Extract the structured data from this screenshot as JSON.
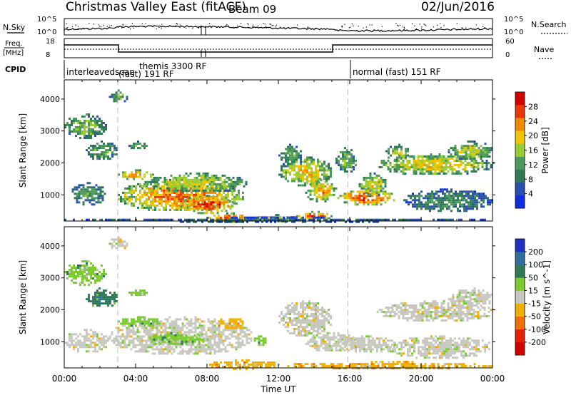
{
  "header": {
    "title": "Christmas Valley East (fitACF)",
    "beam": "Beam 09",
    "date": "02/Jun/2016"
  },
  "top_panels": {
    "nsky": {
      "left_label": "N.Sky",
      "right_label": "N.Search",
      "left_ticks": [
        "10^5",
        "10^0"
      ],
      "right_ticks": [
        "10^5",
        "10^0"
      ]
    },
    "freq": {
      "left_label_1": "Freq.",
      "left_label_2": "[MHz]",
      "left_ticks": [
        "18",
        "8"
      ],
      "right_label": "Nave",
      "right_ticks": [
        "60",
        "0"
      ]
    },
    "cpid": {
      "label": "CPID",
      "segments": [
        {
          "text": "interleavedscan",
          "start_hour": 0
        },
        {
          "text": "themis 3300 RF",
          "start_hour": 7.7
        },
        {
          "text": "(fast) 191 RF",
          "start_hour": 3.0
        },
        {
          "text": "normal (fast) 151 RF",
          "start_hour": 15.9
        }
      ]
    }
  },
  "chart_data": [
    {
      "type": "heatmap",
      "name": "power",
      "ylabel": "Slant Range [km]",
      "xlim_hours": [
        0,
        24
      ],
      "ylim": [
        180,
        4600
      ],
      "yticks": [
        1000,
        2000,
        3000,
        4000
      ],
      "colorbar": {
        "label": "Power [dB]",
        "ticks": [
          4,
          8,
          12,
          16,
          20,
          24,
          28
        ],
        "range": [
          0,
          32
        ],
        "colors": [
          "#1030e0",
          "#2a4fb0",
          "#2f7a55",
          "#4e9a5a",
          "#9acd32",
          "#f2c400",
          "#f08a00",
          "#e83a00",
          "#d40000"
        ]
      },
      "regions": [
        {
          "t0": 0.0,
          "t1": 2.3,
          "r0": 2800,
          "r1": 3550,
          "level": 0.45
        },
        {
          "t0": 0.3,
          "t1": 2.3,
          "r0": 700,
          "r1": 1400,
          "level": 0.35
        },
        {
          "t0": 1.2,
          "t1": 3.0,
          "r0": 2100,
          "r1": 2700,
          "level": 0.4
        },
        {
          "t0": 2.5,
          "t1": 3.5,
          "r0": 3900,
          "r1": 4300,
          "level": 0.4
        },
        {
          "t0": 3.6,
          "t1": 4.6,
          "r0": 2450,
          "r1": 2700,
          "level": 0.5
        },
        {
          "t0": 3.0,
          "t1": 5.0,
          "r0": 1500,
          "r1": 1800,
          "level": 0.75
        },
        {
          "t0": 3.0,
          "t1": 10.0,
          "r0": 500,
          "r1": 1500,
          "level": 0.8
        },
        {
          "t0": 4.5,
          "t1": 10.2,
          "r0": 1100,
          "r1": 1700,
          "level": 0.55
        },
        {
          "t0": 6.5,
          "t1": 9.5,
          "r0": 450,
          "r1": 1000,
          "level": 0.92
        },
        {
          "t0": 8.0,
          "t1": 10.5,
          "r0": 180,
          "r1": 450,
          "level": 0.85
        },
        {
          "t0": 10.5,
          "t1": 13.0,
          "r0": 180,
          "r1": 400,
          "level": 0.6
        },
        {
          "t0": 12.0,
          "t1": 13.3,
          "r0": 1900,
          "r1": 2600,
          "level": 0.4
        },
        {
          "t0": 12.0,
          "t1": 15.0,
          "r0": 1300,
          "r1": 2200,
          "level": 0.65
        },
        {
          "t0": 13.5,
          "t1": 15.2,
          "r0": 800,
          "r1": 1500,
          "level": 0.72
        },
        {
          "t0": 13.0,
          "t1": 15.0,
          "r0": 250,
          "r1": 500,
          "level": 0.85
        },
        {
          "t0": 15.3,
          "t1": 18.5,
          "r0": 700,
          "r1": 1200,
          "level": 0.88
        },
        {
          "t0": 15.2,
          "t1": 16.3,
          "r0": 1700,
          "r1": 2500,
          "level": 0.45
        },
        {
          "t0": 16.5,
          "t1": 18.0,
          "r0": 1000,
          "r1": 1700,
          "level": 0.6
        },
        {
          "t0": 17.5,
          "t1": 24.0,
          "r0": 1650,
          "r1": 2300,
          "level": 0.62
        },
        {
          "t0": 18.0,
          "t1": 19.3,
          "r0": 2100,
          "r1": 2600,
          "level": 0.55
        },
        {
          "t0": 19.0,
          "t1": 24.0,
          "r0": 500,
          "r1": 1200,
          "level": 0.3
        },
        {
          "t0": 21.5,
          "t1": 24.0,
          "r0": 2100,
          "r1": 2700,
          "level": 0.55
        },
        {
          "t0": 0.0,
          "t1": 24.0,
          "r0": 180,
          "r1": 320,
          "level": 0.2
        }
      ]
    },
    {
      "type": "heatmap",
      "name": "velocity",
      "ylabel": "Slant Range [km]",
      "xlabel": "Time UT",
      "xticks": [
        "00:00",
        "04:00",
        "08:00",
        "12:00",
        "16:00",
        "20:00",
        "00:00"
      ],
      "xlim_hours": [
        0,
        24
      ],
      "ylim": [
        180,
        4600
      ],
      "yticks": [
        1000,
        2000,
        3000,
        4000
      ],
      "colorbar": {
        "label": "Velocity [m s^-1]",
        "ticks": [
          "200",
          "100",
          "50",
          "15",
          "-15",
          "-50",
          "-100",
          "-200"
        ],
        "colors": [
          "#2030c0",
          "#2f6fa0",
          "#2f7a55",
          "#7acc30",
          "#c8c8c0",
          "#f0b000",
          "#f07000",
          "#e82000",
          "#d40000"
        ]
      },
      "regions": [
        {
          "t0": 0.0,
          "t1": 2.3,
          "r0": 2800,
          "r1": 3550,
          "cls": 3
        },
        {
          "t0": 1.2,
          "t1": 3.0,
          "r0": 2100,
          "r1": 2700,
          "cls": 2
        },
        {
          "t0": 2.5,
          "t1": 3.5,
          "r0": 3900,
          "r1": 4300,
          "cls": 4
        },
        {
          "t0": 3.6,
          "t1": 4.6,
          "r0": 2450,
          "r1": 2700,
          "cls": 3
        },
        {
          "t0": 0.0,
          "t1": 2.5,
          "r0": 700,
          "r1": 1400,
          "cls": 4
        },
        {
          "t0": 2.5,
          "t1": 10.5,
          "r0": 600,
          "r1": 1800,
          "cls": 4
        },
        {
          "t0": 3.0,
          "t1": 5.5,
          "r0": 1500,
          "r1": 1800,
          "cls": 3
        },
        {
          "t0": 4.5,
          "t1": 8.0,
          "r0": 900,
          "r1": 1300,
          "cls": 3
        },
        {
          "t0": 8.5,
          "t1": 10.0,
          "r0": 1400,
          "r1": 1800,
          "cls": 5
        },
        {
          "t0": 8.0,
          "t1": 12.0,
          "r0": 180,
          "r1": 450,
          "cls": 5
        },
        {
          "t0": 10.5,
          "t1": 11.3,
          "r0": 900,
          "r1": 1200,
          "cls": 3
        },
        {
          "t0": 12.0,
          "t1": 15.0,
          "r0": 1200,
          "r1": 2300,
          "cls": 4
        },
        {
          "t0": 13.5,
          "t1": 16.5,
          "r0": 700,
          "r1": 1300,
          "cls": 4
        },
        {
          "t0": 15.2,
          "t1": 18.5,
          "r0": 700,
          "r1": 1200,
          "cls": 4
        },
        {
          "t0": 17.5,
          "t1": 24.0,
          "r0": 1650,
          "r1": 2300,
          "cls": 4
        },
        {
          "t0": 21.5,
          "t1": 24.0,
          "r0": 2100,
          "r1": 2700,
          "cls": 4
        },
        {
          "t0": 18.0,
          "t1": 24.0,
          "r0": 500,
          "r1": 1200,
          "cls": 4
        },
        {
          "t0": 12.5,
          "t1": 24.0,
          "r0": 180,
          "r1": 400,
          "cls": 5
        }
      ]
    }
  ]
}
